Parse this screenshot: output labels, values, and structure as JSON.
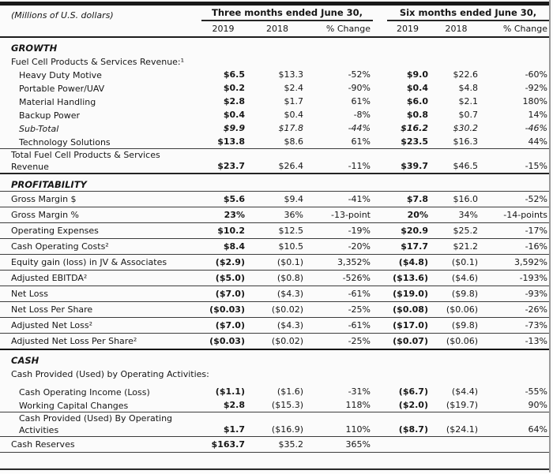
{
  "table": {
    "units_label": "(Millions of U.S. dollars)",
    "header": {
      "groups": [
        "Three months ended June 30,",
        "Six months ended June 30,"
      ],
      "columns": [
        "2019",
        "2018",
        "% Change",
        "2019",
        "2018",
        "% Change"
      ]
    },
    "rows": [
      {
        "style": "section",
        "rule": "none",
        "label": "GROWTH"
      },
      {
        "style": "plainlabel",
        "rule": "none",
        "label": "Fuel Cell Products & Services Revenue:¹"
      },
      {
        "style": "item",
        "indent": 1,
        "rule": "none",
        "label": "Heavy Duty Motive",
        "values": [
          "$6.5",
          "$13.3",
          "-52%",
          "$9.0",
          "$22.6",
          "-60%"
        ]
      },
      {
        "style": "item",
        "indent": 1,
        "rule": "none",
        "label": "Portable Power/UAV",
        "values": [
          "$0.2",
          "$2.4",
          "-90%",
          "$0.4",
          "$4.8",
          "-92%"
        ]
      },
      {
        "style": "item",
        "indent": 1,
        "rule": "none",
        "label": "Material Handling",
        "values": [
          "$2.8",
          "$1.7",
          "61%",
          "$6.0",
          "$2.1",
          "180%"
        ]
      },
      {
        "style": "item",
        "indent": 1,
        "rule": "none",
        "label": "Backup Power",
        "values": [
          "$0.4",
          "$0.4",
          "-8%",
          "$0.8",
          "$0.7",
          "14%"
        ]
      },
      {
        "style": "italic",
        "indent": 1,
        "rule": "none",
        "label": "Sub-Total",
        "values": [
          "$9.9",
          "$17.8",
          "-44%",
          "$16.2",
          "$30.2",
          "-46%"
        ]
      },
      {
        "style": "item",
        "indent": 1,
        "rule": "thin",
        "label": "Technology Solutions",
        "values": [
          "$13.8",
          "$8.6",
          "61%",
          "$23.5",
          "$16.3",
          "44%"
        ]
      },
      {
        "style": "item tight",
        "rule": "medium",
        "label": "Total Fuel Cell Products & Services Revenue",
        "values": [
          "$23.7",
          "$26.4",
          "-11%",
          "$39.7",
          "$46.5",
          "-15%"
        ]
      },
      {
        "style": "section",
        "rule": "thin",
        "label": "PROFITABILITY"
      },
      {
        "style": "item",
        "pad": true,
        "rule": "thin",
        "label": "Gross Margin $",
        "values": [
          "$5.6",
          "$9.4",
          "-41%",
          "$7.8",
          "$16.0",
          "-52%"
        ]
      },
      {
        "style": "item",
        "pad": true,
        "rule": "thin",
        "label": "Gross Margin %",
        "values": [
          "23%",
          "36%",
          "-13-point",
          "20%",
          "34%",
          "-14-points"
        ]
      },
      {
        "style": "item",
        "pad": true,
        "rule": "thin",
        "label": "Operating Expenses",
        "values": [
          "$10.2",
          "$12.5",
          "-19%",
          "$20.9",
          "$25.2",
          "-17%"
        ]
      },
      {
        "style": "item",
        "pad": true,
        "rule": "thin",
        "label": "Cash Operating Costs²",
        "values": [
          "$8.4",
          "$10.5",
          "-20%",
          "$17.7",
          "$21.2",
          "-16%"
        ]
      },
      {
        "style": "item",
        "pad": true,
        "rule": "thin",
        "label": "Equity gain (loss) in JV & Associates",
        "values": [
          "($2.9)",
          "($0.1)",
          "3,352%",
          "($4.8)",
          "($0.1)",
          "3,592%"
        ]
      },
      {
        "style": "item",
        "pad": true,
        "rule": "thin",
        "label": "Adjusted EBITDA²",
        "values": [
          "($5.0)",
          "($0.8)",
          "-526%",
          "($13.6)",
          "($4.6)",
          "-193%"
        ]
      },
      {
        "style": "item",
        "pad": true,
        "rule": "thin",
        "label": "Net Loss",
        "values": [
          "($7.0)",
          "($4.3)",
          "-61%",
          "($19.0)",
          "($9.8)",
          "-93%"
        ]
      },
      {
        "style": "item",
        "pad": true,
        "rule": "thin",
        "label": "Net Loss Per Share",
        "values": [
          "($0.03)",
          "($0.02)",
          "-25%",
          "($0.08)",
          "($0.06)",
          "-26%"
        ]
      },
      {
        "style": "item",
        "pad": true,
        "rule": "thin",
        "label": "Adjusted Net Loss²",
        "values": [
          "($7.0)",
          "($4.3)",
          "-61%",
          "($17.0)",
          "($9.8)",
          "-73%"
        ]
      },
      {
        "style": "item",
        "pad": true,
        "rule": "heavy",
        "label": "Adjusted Net Loss Per Share²",
        "values": [
          "($0.03)",
          "($0.02)",
          "-25%",
          "($0.07)",
          "($0.06)",
          "-13%"
        ]
      },
      {
        "style": "section",
        "rule": "none",
        "label": "CASH"
      },
      {
        "style": "plainlabel",
        "rule": "none",
        "label": "Cash Provided (Used) by Operating Activities:"
      },
      {
        "style": "item",
        "indent": 1,
        "gap": true,
        "rule": "none",
        "label": "Cash Operating Income (Loss)",
        "values": [
          "($1.1)",
          "($1.6)",
          "-31%",
          "($6.7)",
          "($4.4)",
          "-55%"
        ]
      },
      {
        "style": "item",
        "indent": 1,
        "rule": "thin",
        "label": "Working Capital Changes",
        "values": [
          "$2.8",
          "($15.3)",
          "118%",
          "($2.0)",
          "($19.7)",
          "90%"
        ]
      },
      {
        "style": "item tight",
        "indent": 1,
        "rule": "thin",
        "label": "Cash Provided (Used) By Operating Activities",
        "values": [
          "$1.7",
          "($16.9)",
          "110%",
          "($8.7)",
          "($24.1)",
          "64%"
        ]
      },
      {
        "style": "item",
        "pad": true,
        "rule": "thin",
        "label": "Cash Reserves",
        "values": [
          "$163.7",
          "$35.2",
          "365%",
          "",
          "",
          ""
        ]
      }
    ]
  }
}
